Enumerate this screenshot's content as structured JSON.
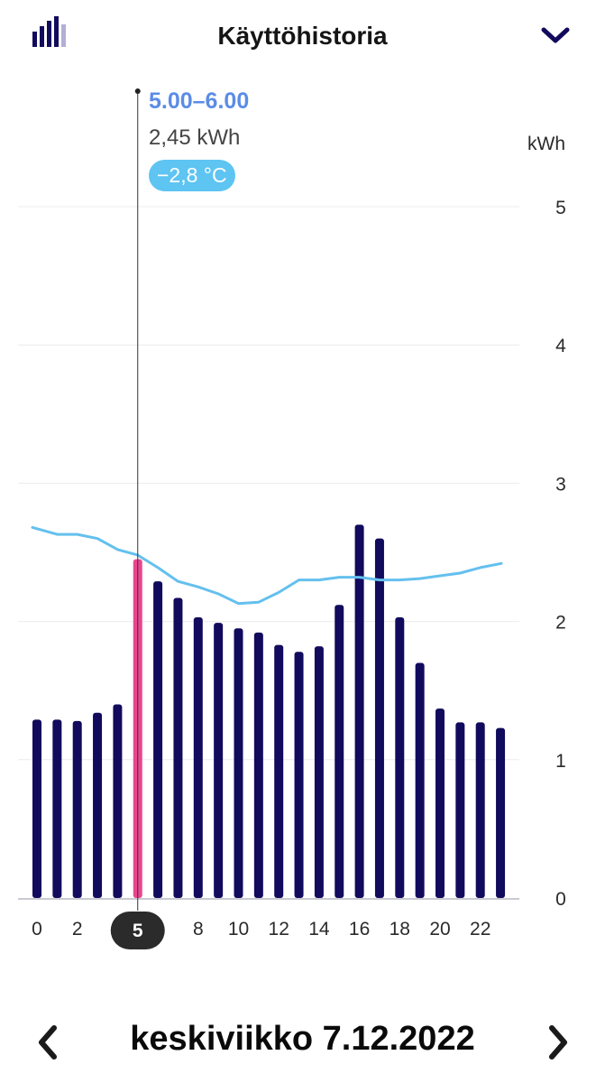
{
  "header": {
    "title": "Käyttöhistoria"
  },
  "tooltip": {
    "time": "5.00–6.00",
    "energy": "2,45 kWh",
    "temperature": "−2,8 °C"
  },
  "date_nav": {
    "date": "keskiviikko 7.12.2022"
  },
  "colors": {
    "bar": "#120a5c",
    "bar_selected": "#e9468f",
    "temperature_line": "#64c0ee",
    "tooltip_time": "#5b8ce6",
    "badge": "#5ec4f2"
  },
  "chart_data": {
    "type": "bar",
    "title": "Käyttöhistoria",
    "ylabel": "kWh",
    "xlabel": "",
    "ylim": [
      0,
      5
    ],
    "yticks": [
      "0",
      "1",
      "2",
      "3",
      "4",
      "5"
    ],
    "categories": [
      0,
      1,
      2,
      3,
      4,
      5,
      6,
      7,
      8,
      9,
      10,
      11,
      12,
      13,
      14,
      15,
      16,
      17,
      18,
      19,
      20,
      21,
      22,
      23
    ],
    "x_tick_labels": [
      {
        "hour": 0,
        "label": "0"
      },
      {
        "hour": 2,
        "label": "2"
      },
      {
        "hour": 5,
        "label": "5"
      },
      {
        "hour": 8,
        "label": "8"
      },
      {
        "hour": 10,
        "label": "10"
      },
      {
        "hour": 12,
        "label": "12"
      },
      {
        "hour": 14,
        "label": "14"
      },
      {
        "hour": 16,
        "label": "16"
      },
      {
        "hour": 18,
        "label": "18"
      },
      {
        "hour": 20,
        "label": "20"
      },
      {
        "hour": 22,
        "label": "22"
      }
    ],
    "selected_hour": 5,
    "series": [
      {
        "name": "kWh",
        "values": [
          1.29,
          1.29,
          1.28,
          1.34,
          1.4,
          2.45,
          2.29,
          2.17,
          2.03,
          1.99,
          1.95,
          1.92,
          1.83,
          1.78,
          1.82,
          2.12,
          2.7,
          2.6,
          2.03,
          1.7,
          1.37,
          1.27,
          1.27,
          1.23
        ]
      },
      {
        "name": "temperature",
        "display": "line",
        "values_in_axis_units": [
          2.68,
          2.63,
          2.63,
          2.6,
          2.52,
          2.48,
          2.39,
          2.29,
          2.25,
          2.2,
          2.13,
          2.14,
          2.21,
          2.3,
          2.3,
          2.32,
          2.32,
          2.3,
          2.3,
          2.31,
          2.33,
          2.35,
          2.39,
          2.42
        ]
      }
    ]
  }
}
